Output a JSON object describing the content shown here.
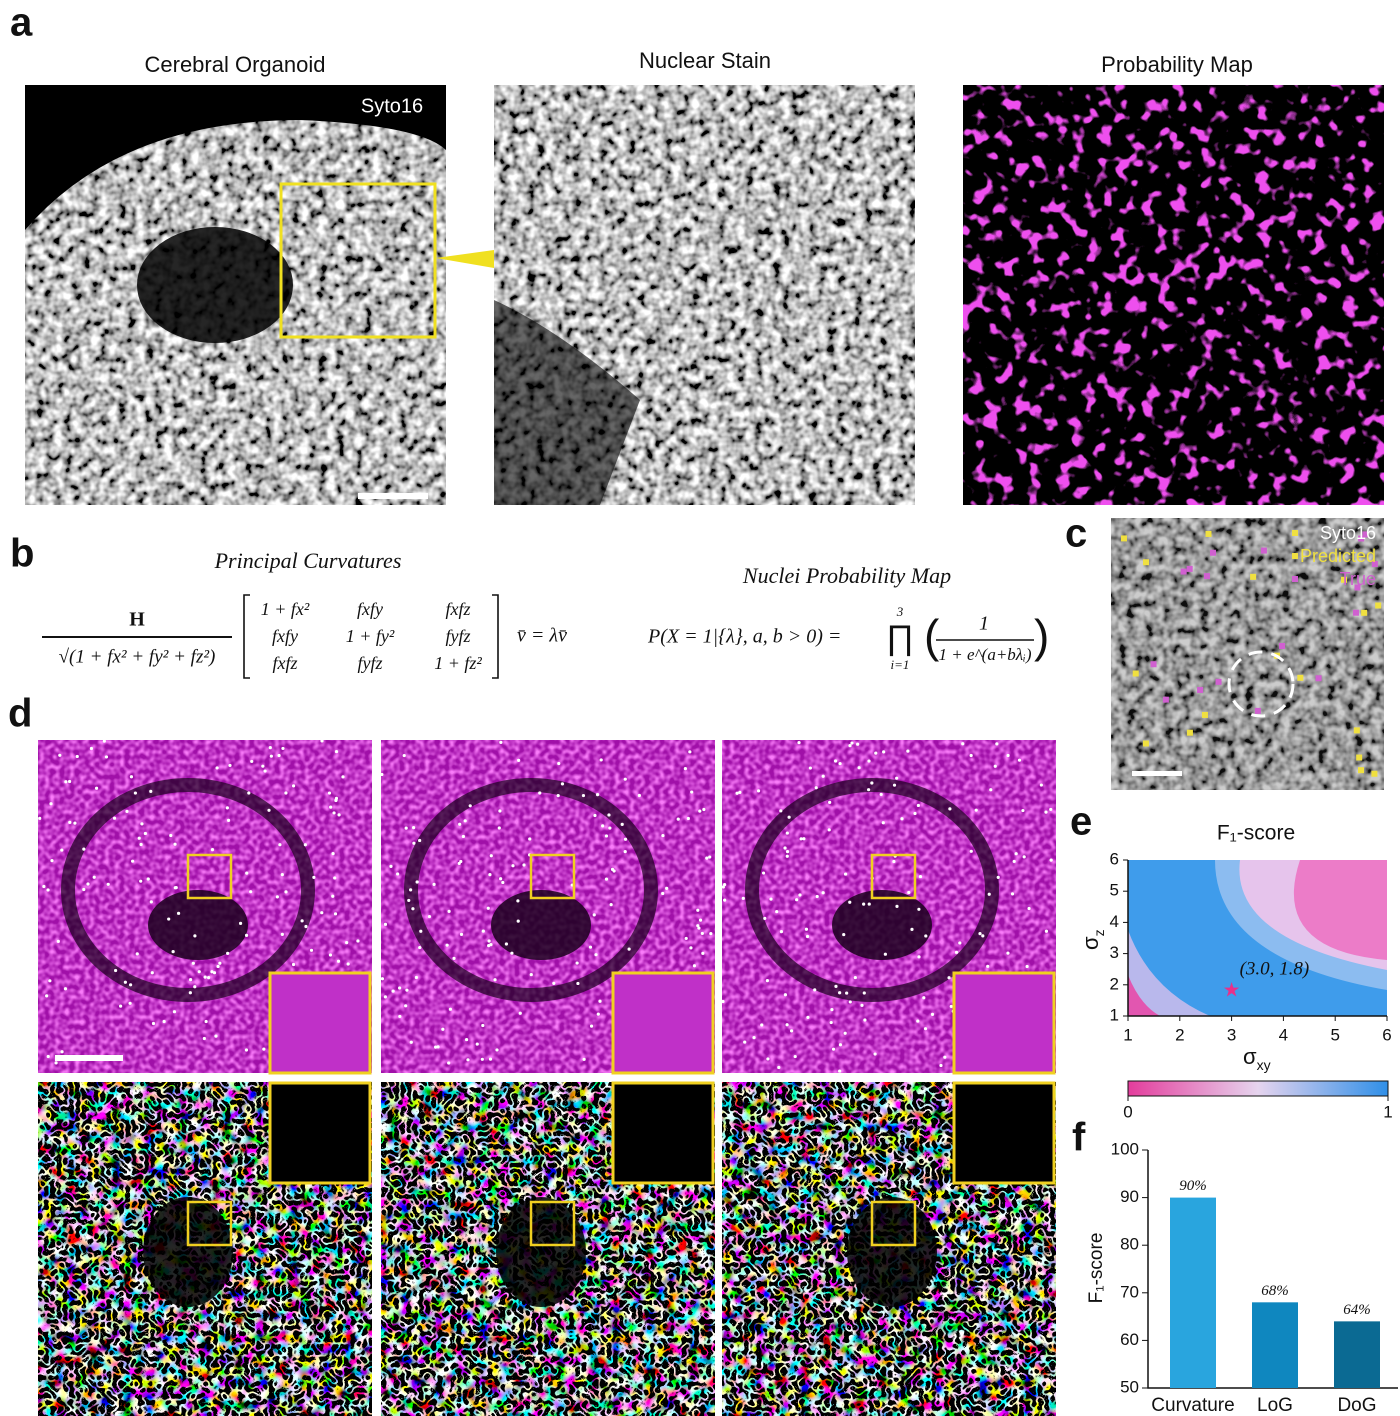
{
  "panel_labels": [
    "a",
    "b",
    "c",
    "d",
    "e",
    "f"
  ],
  "panel_a": {
    "titles": [
      "Cerebral Organoid",
      "Nuclear Stain",
      "Probability Map"
    ],
    "stain_label": "Syto16"
  },
  "panel_b": {
    "titles": [
      "Principal Curvatures",
      "Nuclei Probability Map"
    ],
    "curvature_equation": {
      "numerator": "H",
      "denominator": "√(1 + fx² + fy² + fz²)",
      "matrix": [
        [
          "1 + fx²",
          "fxfy",
          "fxfz"
        ],
        [
          "fxfy",
          "1 + fy²",
          "fyfz"
        ],
        [
          "fxfz",
          "fyfz",
          "1 + fz²"
        ]
      ],
      "rhs": "v̄ = λv̄"
    },
    "probability_equation": {
      "lhs": "P(X = 1|{λ}, a, b > 0) =",
      "product": "∏",
      "upper": "3",
      "lower": "i=1",
      "numerator": "1",
      "denominator": "1 + e^(a+bλᵢ)"
    }
  },
  "panel_c": {
    "legend": [
      {
        "name": "Syto16",
        "color": "#ffffff"
      },
      {
        "name": "Predicted",
        "color": "#f0e040"
      },
      {
        "name": "True",
        "color": "#d060d0"
      }
    ]
  },
  "chart_data": [
    {
      "type": "contour",
      "title": "F₁-score",
      "x_label": {
        "symbol": "σ",
        "subscript": "xy"
      },
      "y_label": {
        "symbol": "σ",
        "subscript": "z"
      },
      "xlim": [
        1,
        6
      ],
      "ylim": [
        1,
        6
      ],
      "xticks": [
        1,
        2,
        3,
        4,
        5,
        6
      ],
      "yticks": [
        1,
        2,
        3,
        4,
        5,
        6
      ],
      "point": {
        "x": 3.0,
        "y": 1.8
      },
      "point_color": "#e8308a",
      "annotation": "(3.0, 1.8)",
      "colorbar": {
        "lim": [
          0,
          1
        ],
        "ticks": [
          0,
          1
        ],
        "colors": [
          "#e43c9c",
          "#e6d4ee",
          "#2f8fe8"
        ]
      }
    },
    {
      "type": "bar",
      "y_label": "F₁-score",
      "categories": [
        "Curvature",
        "LoG",
        "DoG"
      ],
      "values": [
        90,
        68,
        64
      ],
      "value_labels": [
        "90%",
        "68%",
        "64%"
      ],
      "colors": [
        "#29a5de",
        "#0f87bf",
        "#0b6a93"
      ],
      "ylim": [
        50,
        100
      ],
      "yticks": [
        50,
        60,
        70,
        80,
        90,
        100
      ]
    }
  ]
}
